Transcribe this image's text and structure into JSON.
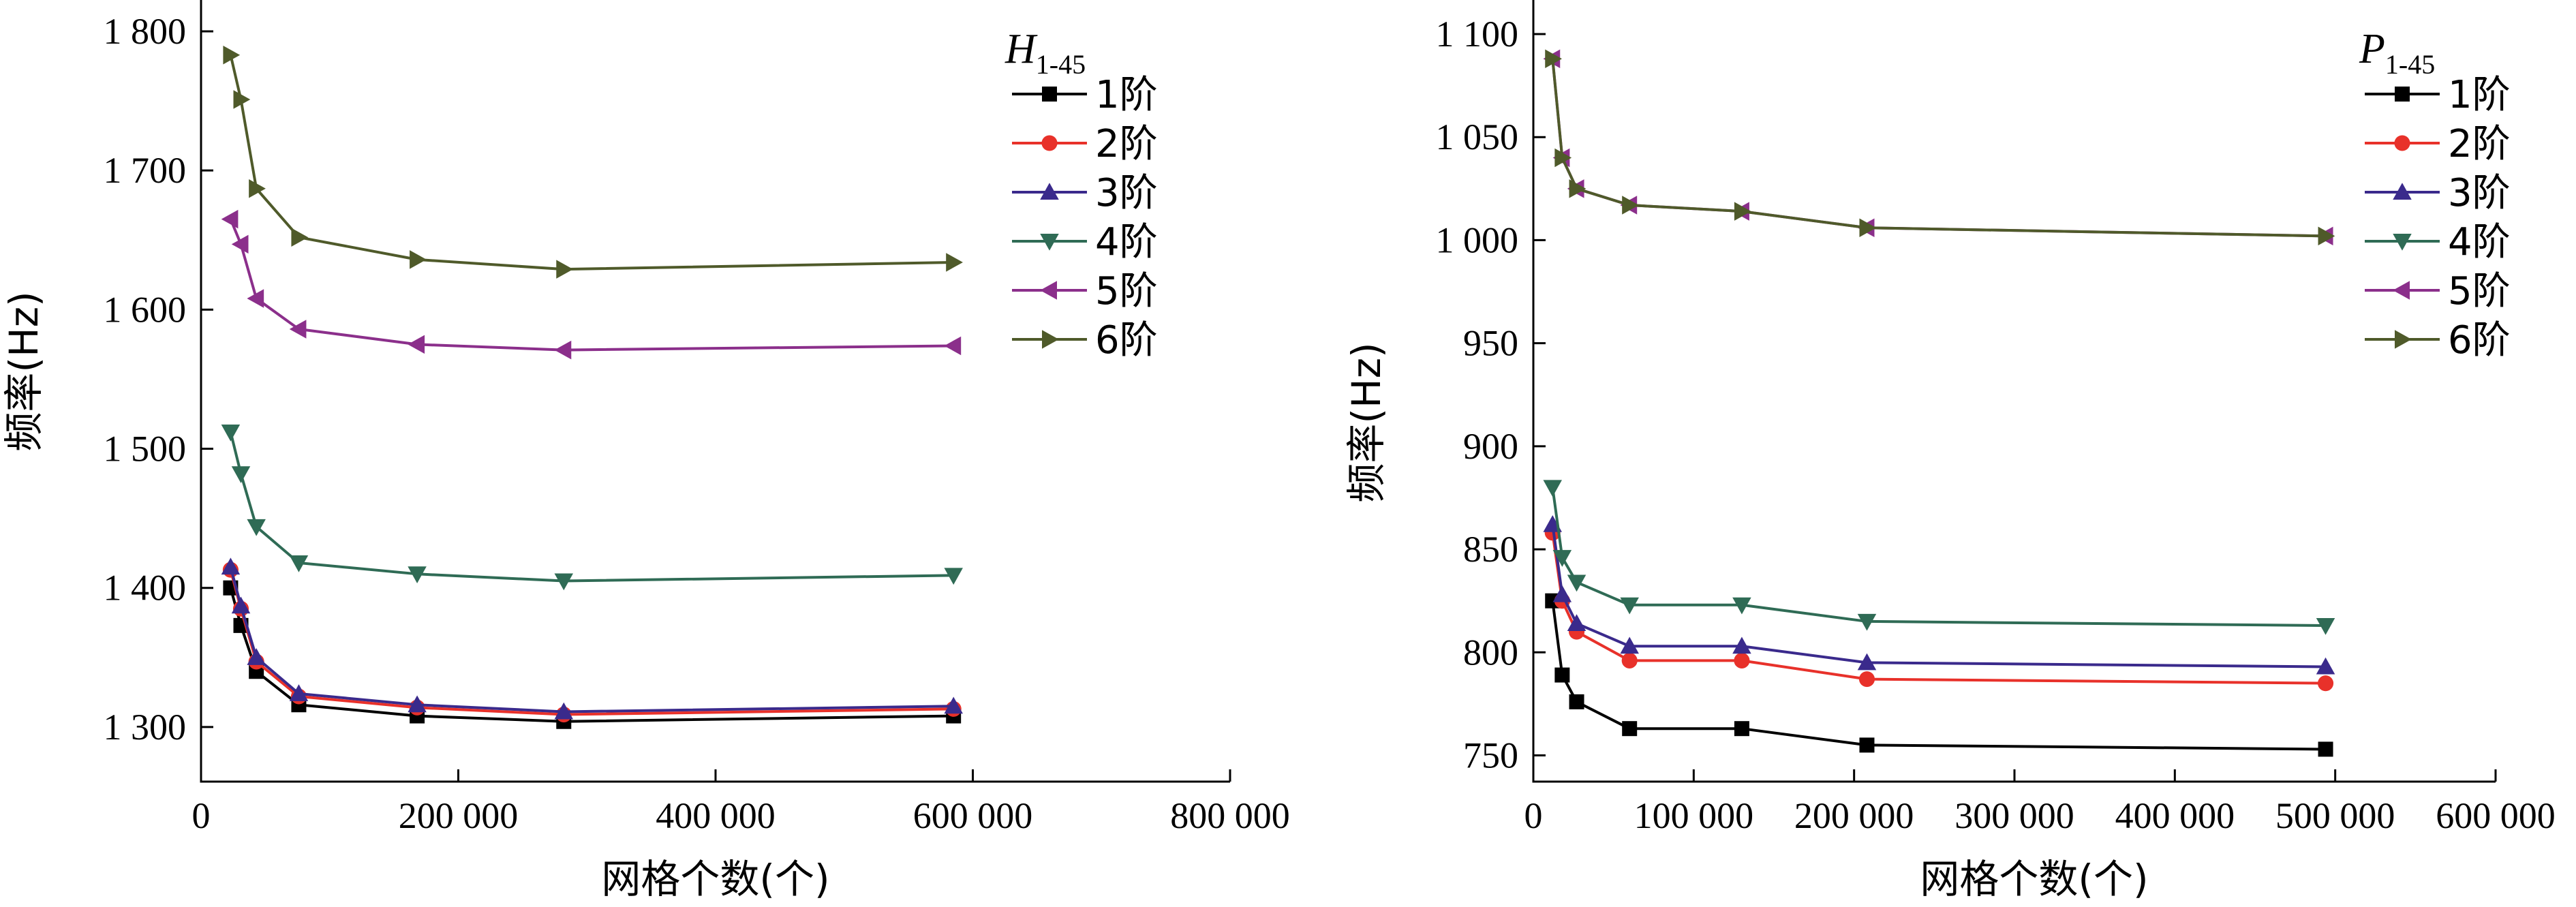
{
  "chart_data": [
    {
      "type": "line",
      "xlabel": "网格个数(个)",
      "ylabel": "频率(Hz)",
      "xlim": [
        0,
        800000
      ],
      "ylim": [
        1250,
        1800
      ],
      "xticks": [
        0,
        200000,
        400000,
        600000,
        800000
      ],
      "xtick_labels": [
        "0",
        "200 000",
        "400 000",
        "600 000",
        "800 000"
      ],
      "yticks": [
        1300,
        1400,
        1500,
        1600,
        1700,
        1800
      ],
      "ytick_labels": [
        "1 300",
        "1 400",
        "1 500",
        "1 600",
        "1 700",
        "1 800"
      ],
      "legend_title_main": "H",
      "legend_title_sub": "1-45",
      "legend_position": "top-right",
      "x": [
        23000,
        31000,
        43000,
        76000,
        168000,
        282000,
        585000
      ],
      "series": [
        {
          "name": "1阶",
          "color": "#000000",
          "marker": "square",
          "values": [
            1400,
            1373,
            1340,
            1316,
            1308,
            1304,
            1308
          ]
        },
        {
          "name": "2阶",
          "color": "#e8312a",
          "marker": "circle",
          "values": [
            1413,
            1385,
            1347,
            1322,
            1314,
            1309,
            1313
          ]
        },
        {
          "name": "3阶",
          "color": "#3a2a8c",
          "marker": "triangle-up",
          "values": [
            1415,
            1387,
            1350,
            1324,
            1316,
            1311,
            1315
          ]
        },
        {
          "name": "4阶",
          "color": "#2f6b55",
          "marker": "triangle-down",
          "values": [
            1512,
            1482,
            1444,
            1418,
            1410,
            1405,
            1409
          ]
        },
        {
          "name": "5阶",
          "color": "#8b2f8b",
          "marker": "triangle-left",
          "values": [
            1665,
            1647,
            1608,
            1586,
            1575,
            1571,
            1574
          ]
        },
        {
          "name": "6阶",
          "color": "#4f5a2a",
          "marker": "triangle-right",
          "values": [
            1783,
            1751,
            1687,
            1652,
            1636,
            1629,
            1634
          ]
        }
      ]
    },
    {
      "type": "line",
      "xlabel": "网格个数(个)",
      "ylabel": "频率(Hz)",
      "xlim": [
        0,
        600000
      ],
      "ylim": [
        730,
        1100
      ],
      "xticks": [
        0,
        100000,
        200000,
        300000,
        400000,
        500000,
        600000
      ],
      "xtick_labels": [
        "0",
        "100 000",
        "200 000",
        "300 000",
        "400 000",
        "500 000",
        "600 000"
      ],
      "yticks": [
        750,
        800,
        850,
        900,
        950,
        1000,
        1050,
        1100
      ],
      "ytick_labels": [
        "750",
        "800",
        "850",
        "900",
        "950",
        "1 000",
        "1 050",
        "1 100"
      ],
      "legend_title_main": "P",
      "legend_title_sub": "1-45",
      "legend_position": "top-right",
      "x": [
        12000,
        18000,
        27000,
        60000,
        130000,
        208000,
        494000
      ],
      "series": [
        {
          "name": "1阶",
          "color": "#000000",
          "marker": "square",
          "values": [
            825,
            789,
            776,
            763,
            763,
            755,
            753
          ]
        },
        {
          "name": "2阶",
          "color": "#e8312a",
          "marker": "circle",
          "values": [
            858,
            825,
            810,
            796,
            796,
            787,
            785
          ]
        },
        {
          "name": "3阶",
          "color": "#3a2a8c",
          "marker": "triangle-up",
          "values": [
            862,
            828,
            814,
            803,
            803,
            795,
            793
          ]
        },
        {
          "name": "4阶",
          "color": "#2f6b55",
          "marker": "triangle-down",
          "values": [
            880,
            846,
            834,
            823,
            823,
            815,
            813
          ]
        },
        {
          "name": "5阶",
          "color": "#8b2f8b",
          "marker": "triangle-left",
          "values": [
            1088,
            1040,
            1025,
            1017,
            1014,
            1006,
            1002
          ]
        },
        {
          "name": "6阶",
          "color": "#4f5a2a",
          "marker": "triangle-right",
          "values": [
            1088,
            1040,
            1025,
            1017,
            1014,
            1006,
            1002
          ]
        }
      ]
    }
  ]
}
